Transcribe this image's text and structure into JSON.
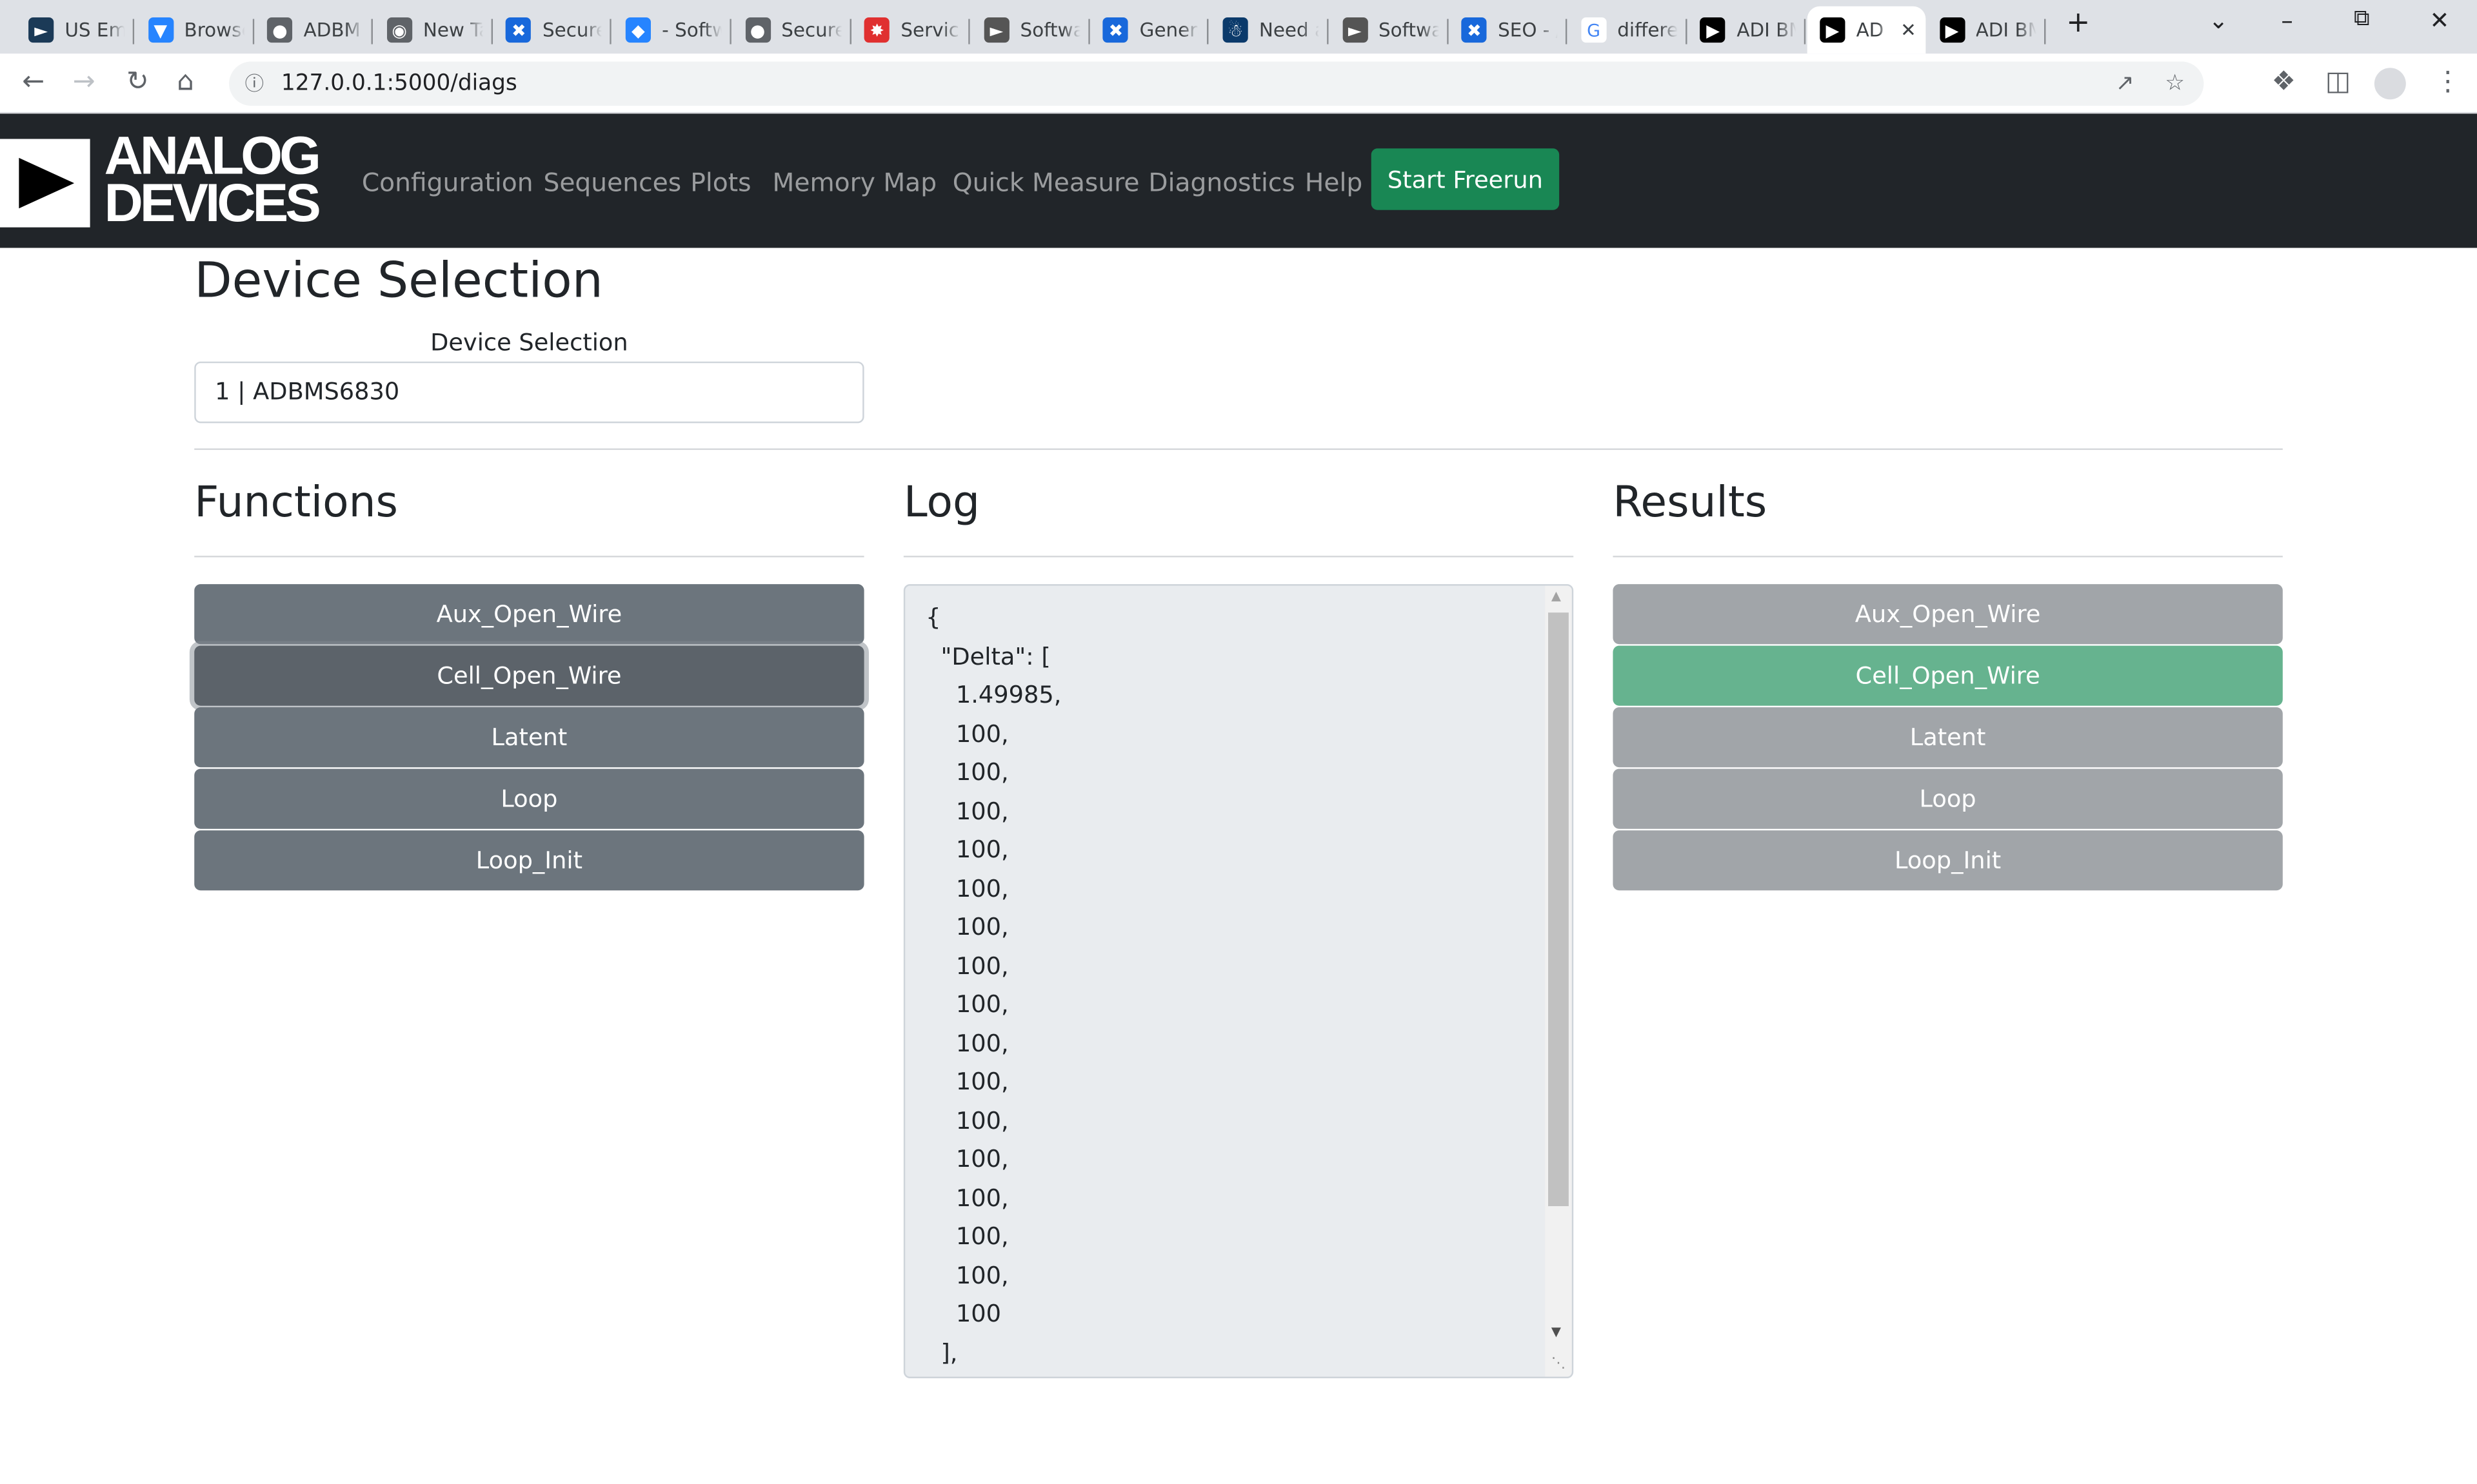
{
  "browser": {
    "tabs": [
      {
        "title": "US Em",
        "icon": "adi-icon",
        "color": "#1b3a57"
      },
      {
        "title": "Browse",
        "icon": "bitbucket-icon",
        "color": "#2684ff"
      },
      {
        "title": "ADBM",
        "icon": "globe-icon",
        "color": "#5f6368"
      },
      {
        "title": "New Ta",
        "icon": "chrome-icon",
        "color": "#5f6368"
      },
      {
        "title": "Secure",
        "icon": "confluence-icon",
        "color": "#1868db"
      },
      {
        "title": "- Softw",
        "icon": "jira-icon",
        "color": "#2684ff"
      },
      {
        "title": "Secure",
        "icon": "globe-icon",
        "color": "#5f6368"
      },
      {
        "title": "Service",
        "icon": "service-icon",
        "color": "#e03030"
      },
      {
        "title": "Softwa",
        "icon": "adi-icon",
        "color": "#555555"
      },
      {
        "title": "Genera",
        "icon": "confluence-icon",
        "color": "#1868db"
      },
      {
        "title": "Need a",
        "icon": "person-icon",
        "color": "#0b3a6b"
      },
      {
        "title": "Softwa",
        "icon": "adi-icon",
        "color": "#555555"
      },
      {
        "title": "SEO - /",
        "icon": "confluence-icon",
        "color": "#1868db"
      },
      {
        "title": "differe",
        "icon": "google-icon",
        "color": "#4285f4"
      },
      {
        "title": "ADI BM",
        "icon": "play-icon",
        "color": "#000000"
      },
      {
        "title": "AD",
        "icon": "play-icon",
        "color": "#000000",
        "active": true
      },
      {
        "title": "ADI BM",
        "icon": "play-icon",
        "color": "#000000"
      }
    ],
    "url": "127.0.0.1:5000/diags"
  },
  "navbar": {
    "logo": "ANALOG DEVICES",
    "logo_line1": "ANALOG",
    "logo_line2": "DEVICES",
    "links": [
      "Configuration",
      "Sequences",
      "Plots",
      "Memory Map",
      "Quick Measure",
      "Diagnostics",
      "Help"
    ],
    "freerun": "Start Freerun",
    "freerun_color": "#198754"
  },
  "page": {
    "title": "Device Selection",
    "device_label": "Device Selection",
    "device_value": "1 | ADBMS6830"
  },
  "functions": {
    "heading": "Functions",
    "items": [
      "Aux_Open_Wire",
      "Cell_Open_Wire",
      "Latent",
      "Loop",
      "Loop_Init"
    ]
  },
  "log": {
    "heading": "Log",
    "text": "{\n  \"Delta\": [\n    1.49985,\n    100,\n    100,\n    100,\n    100,\n    100,\n    100,\n    100,\n    100,\n    100,\n    100,\n    100,\n    100,\n    100,\n    100,\n    100,\n    100\n  ],"
  },
  "results": {
    "heading": "Results",
    "items": [
      "Aux_Open_Wire",
      "Cell_Open_Wire",
      "Latent",
      "Loop",
      "Loop_Init"
    ],
    "passed_color": "#66b38f"
  }
}
